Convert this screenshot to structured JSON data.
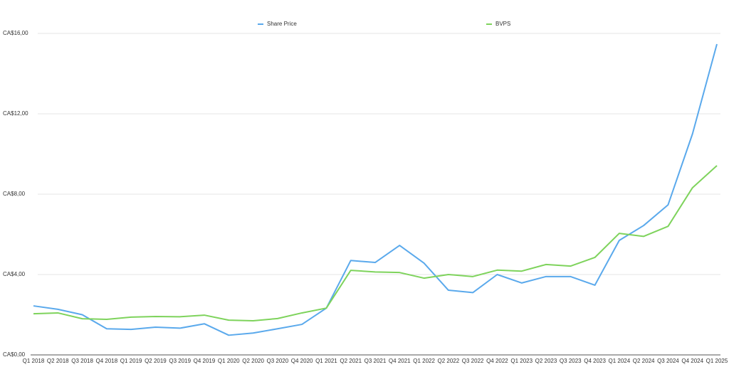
{
  "chart_data": {
    "type": "line",
    "categories": [
      "Q1 2018",
      "Q2 2018",
      "Q3 2018",
      "Q4 2018",
      "Q1 2019",
      "Q2 2019",
      "Q3 2019",
      "Q4 2019",
      "Q1 2020",
      "Q2 2020",
      "Q3 2020",
      "Q4 2020",
      "Q1 2021",
      "Q2 2021",
      "Q3 2021",
      "Q4 2021",
      "Q1 2022",
      "Q2 2022",
      "Q3 2022",
      "Q4 2022",
      "Q1 2023",
      "Q2 2023",
      "Q3 2023",
      "Q4 2023",
      "Q1 2024",
      "Q2 2024",
      "Q3 2024",
      "Q4 2024",
      "Q1 2025"
    ],
    "series": [
      {
        "name": "Share Price",
        "color": "#5aa9ec",
        "values": [
          2.44,
          2.27,
          2.0,
          1.3,
          1.27,
          1.38,
          1.33,
          1.55,
          0.98,
          1.09,
          1.3,
          1.52,
          2.33,
          4.7,
          4.6,
          5.45,
          4.57,
          3.22,
          3.1,
          4.0,
          3.58,
          3.9,
          3.9,
          3.47,
          5.7,
          6.44,
          7.47,
          11.0,
          15.47
        ]
      },
      {
        "name": "BVPS",
        "color": "#7ed35c",
        "values": [
          2.05,
          2.09,
          1.8,
          1.77,
          1.88,
          1.91,
          1.9,
          1.98,
          1.73,
          1.7,
          1.81,
          2.09,
          2.33,
          4.21,
          4.13,
          4.1,
          3.82,
          4.0,
          3.9,
          4.22,
          4.17,
          4.5,
          4.42,
          4.85,
          6.05,
          5.9,
          6.4,
          8.32,
          9.42
        ]
      }
    ],
    "ylim": [
      0,
      16
    ],
    "yticks": [
      {
        "value": 0,
        "label": "CA$0,00"
      },
      {
        "value": 4,
        "label": "CA$4,00"
      },
      {
        "value": 8,
        "label": "CA$8,00"
      },
      {
        "value": 12,
        "label": "CA$12,00"
      },
      {
        "value": 16,
        "label": "CA$16,00"
      }
    ],
    "grid": true
  }
}
